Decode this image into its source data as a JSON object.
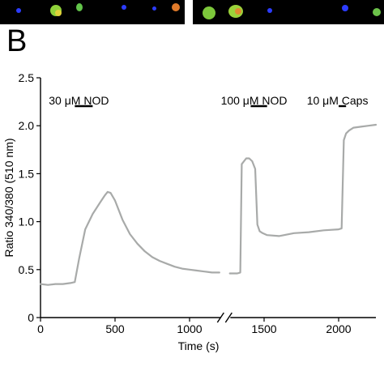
{
  "panel_label": "B",
  "chart_data": {
    "type": "line",
    "xlabel": "Time (s)",
    "ylabel": "Ratio 340/380 (510 nm)",
    "xlim": [
      0,
      2250
    ],
    "ylim": [
      0,
      2.5
    ],
    "x_axis_break": true,
    "x_ticks": [
      {
        "value": 0,
        "label": "0"
      },
      {
        "value": 500,
        "label": "500"
      },
      {
        "value": 1000,
        "label": "1000"
      },
      {
        "value": 1500,
        "label": "1500"
      },
      {
        "value": 2000,
        "label": "2000"
      }
    ],
    "y_ticks": [
      {
        "value": 0,
        "label": "0"
      },
      {
        "value": 0.5,
        "label": "0.5"
      },
      {
        "value": 1.0,
        "label": "1.0"
      },
      {
        "value": 1.5,
        "label": "1.5"
      },
      {
        "value": 2.0,
        "label": "2.0"
      },
      {
        "value": 2.5,
        "label": "2.5"
      }
    ],
    "annotations": [
      {
        "text": "30 μM NOD",
        "start": 230,
        "end": 350
      },
      {
        "text": "100 μM NOD",
        "start": 1410,
        "end": 1520
      },
      {
        "text": "10 μM Caps",
        "start": 2000,
        "end": 2050
      }
    ],
    "series": [
      {
        "color": "#a8aaa9",
        "segments": [
          {
            "x": [
              0,
              50,
              100,
              150,
              200,
              230,
              260,
              300,
              350,
              400,
              430,
              450,
              470,
              500,
              550,
              600,
              650,
              700,
              750,
              800,
              850,
              900,
              950,
              1000,
              1050,
              1100,
              1150,
              1200
            ],
            "y": [
              0.35,
              0.34,
              0.35,
              0.35,
              0.36,
              0.37,
              0.62,
              0.92,
              1.08,
              1.2,
              1.27,
              1.31,
              1.3,
              1.22,
              1.02,
              0.87,
              0.77,
              0.69,
              0.63,
              0.59,
              0.56,
              0.53,
              0.51,
              0.5,
              0.49,
              0.48,
              0.47,
              0.47
            ]
          },
          {
            "x": [
              1270,
              1300,
              1320,
              1340,
              1350,
              1380,
              1400,
              1420,
              1440,
              1455,
              1470,
              1490,
              1520,
              1600,
              1700,
              1800,
              1900,
              2000,
              2020,
              2035,
              2050,
              2070,
              2100,
              2150,
              2200,
              2250
            ],
            "y": [
              0.46,
              0.46,
              0.46,
              0.47,
              1.6,
              1.66,
              1.66,
              1.63,
              1.55,
              0.97,
              0.9,
              0.88,
              0.86,
              0.85,
              0.88,
              0.89,
              0.91,
              0.92,
              0.93,
              1.85,
              1.92,
              1.95,
              1.98,
              1.99,
              2.0,
              2.01
            ]
          }
        ]
      }
    ]
  }
}
